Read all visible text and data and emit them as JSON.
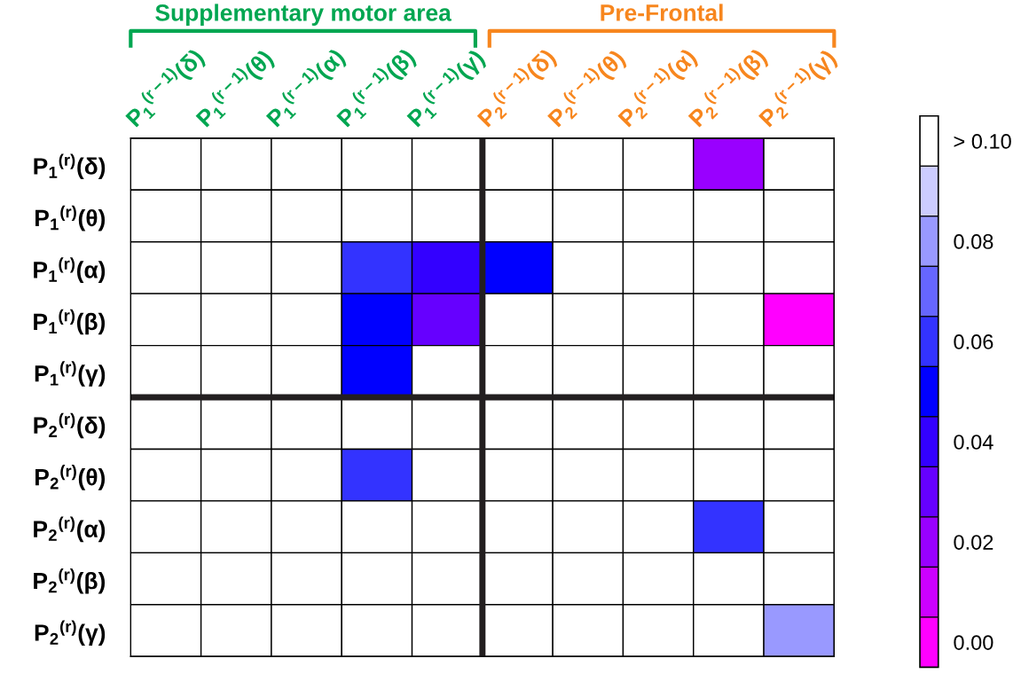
{
  "chart_data": {
    "type": "heatmap",
    "annotations": [
      "Supplementary motor area",
      "Pre-Frontal"
    ],
    "categories": [
      "P$_{1}$$^{(r−1)}$(δ)",
      "P$_{1}$$^{(r−1)}$(θ)",
      "P$_{1}$$^{(r−1)}$(α)",
      "P$_{1}$$^{(r−1)}$(β)",
      "P$_{1}$$^{(r−1)}$(γ)",
      "P$_{2}$$^{(r−1)}$(δ)",
      "P$_{2}$$^{(r−1)}$(θ)",
      "P$_{2}$$^{(r−1)}$(α)",
      "P$_{2}$$^{(r−1)}$(β)",
      "P$_{2}$$^{(r−1)}$(γ)"
    ],
    "y_categories": [
      "P$_{1}$$^{(r)}$(δ)",
      "P$_{1}$$^{(r)}$(θ)",
      "P$_{1}$$^{(r)}$(α)",
      "P$_{1}$$^{(r)}$(β)",
      "P$_{1}$$^{(r)}$(γ)",
      "P$_{2}$$^{(r)}$(δ)",
      "P$_{2}$$^{(r)}$(θ)",
      "P$_{2}$$^{(r)}$(α)",
      "P$_{2}$$^{(r)}$(β)",
      "P$_{2}$$^{(r)}$(γ)"
    ],
    "cells": [
      [
        0.1,
        0.1,
        0.1,
        0.1,
        0.1,
        0.1,
        0.1,
        0.1,
        0.02,
        0.1
      ],
      [
        0.1,
        0.1,
        0.1,
        0.1,
        0.1,
        0.1,
        0.1,
        0.1,
        0.1,
        0.1
      ],
      [
        0.1,
        0.1,
        0.1,
        0.06,
        0.04,
        0.05,
        0.1,
        0.1,
        0.1,
        0.1
      ],
      [
        0.1,
        0.1,
        0.1,
        0.05,
        0.03,
        0.1,
        0.1,
        0.1,
        0.1,
        0.0
      ],
      [
        0.1,
        0.1,
        0.1,
        0.05,
        0.1,
        0.1,
        0.1,
        0.1,
        0.1,
        0.1
      ],
      [
        0.1,
        0.1,
        0.1,
        0.1,
        0.1,
        0.1,
        0.1,
        0.1,
        0.1,
        0.1
      ],
      [
        0.1,
        0.1,
        0.1,
        0.06,
        0.1,
        0.1,
        0.1,
        0.1,
        0.1,
        0.1
      ],
      [
        0.1,
        0.1,
        0.1,
        0.1,
        0.1,
        0.1,
        0.1,
        0.1,
        0.06,
        0.1
      ],
      [
        0.1,
        0.1,
        0.1,
        0.1,
        0.1,
        0.1,
        0.1,
        0.1,
        0.1,
        0.1
      ],
      [
        0.1,
        0.1,
        0.1,
        0.1,
        0.1,
        0.1,
        0.1,
        0.1,
        0.1,
        0.08
      ]
    ],
    "colors": [
      "#ff00ff",
      "#cc00ff",
      "#9900ff",
      "#6600ff",
      "#3300ff",
      "#0000ff",
      "#3333ff",
      "#6666ff",
      "#9999ff",
      "#ccccff",
      "#ffffff"
    ],
    "clim": [
      -0.005,
      0.105
    ],
    "cticks": [
      {
        "value": 0,
        "label": "0.00"
      },
      0.02,
      0.04,
      0.06,
      0.08,
      {
        "value": 0.1,
        "label": "> 0.10"
      }
    ]
  }
}
